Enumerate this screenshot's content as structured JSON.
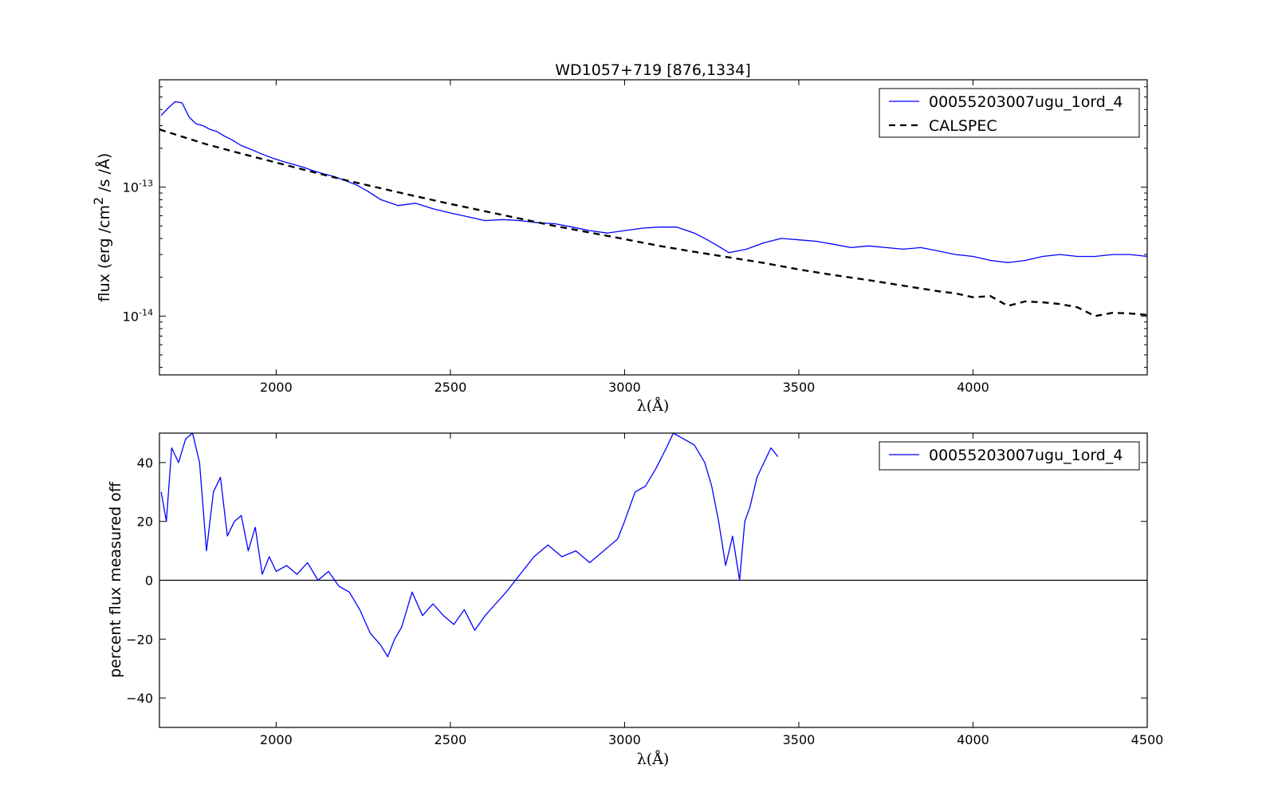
{
  "chart_data": [
    {
      "type": "line",
      "title": "WD1057+719 [876,1334]",
      "xlabel": "λ(Å)",
      "ylabel": "flux (erg /cm² /s /Å)",
      "ylabel_parts": {
        "pre": "flux (erg /cm",
        "sup": "2",
        "post": " /s /Å)"
      },
      "y_scale": "log",
      "xlim": [
        1665,
        4500
      ],
      "ylim": [
        3.5e-15,
        6.8e-13
      ],
      "x_ticks": [
        2000,
        2500,
        3000,
        3500,
        4000
      ],
      "x_tick_labels": [
        "2000",
        "2500",
        "3000",
        "3500",
        "4000"
      ],
      "y_ticks": [
        1e-13,
        1e-14
      ],
      "y_tick_labels": [
        {
          "base": "10",
          "exp": "-13"
        },
        {
          "base": "10",
          "exp": "-14"
        }
      ],
      "grid": false,
      "legend_position": "top-right",
      "series": [
        {
          "name": "00055203007ugu_1ord_4",
          "color": "#0000ff",
          "style": "solid",
          "x": [
            1670,
            1690,
            1710,
            1730,
            1750,
            1770,
            1790,
            1810,
            1830,
            1850,
            1870,
            1900,
            1930,
            1960,
            1990,
            2020,
            2050,
            2080,
            2110,
            2140,
            2170,
            2200,
            2230,
            2260,
            2300,
            2350,
            2400,
            2450,
            2500,
            2550,
            2600,
            2650,
            2700,
            2750,
            2800,
            2850,
            2900,
            2950,
            3000,
            3050,
            3100,
            3150,
            3200,
            3230,
            3260,
            3300,
            3350,
            3400,
            3450,
            3500,
            3550,
            3600,
            3650,
            3700,
            3750,
            3800,
            3850,
            3900,
            3950,
            4000,
            4050,
            4100,
            4150,
            4200,
            4250,
            4300,
            4350,
            4400,
            4450,
            4500
          ],
          "y": [
            3.6e-13,
            4.1e-13,
            4.6e-13,
            4.5e-13,
            3.5e-13,
            3.1e-13,
            3e-13,
            2.8e-13,
            2.7e-13,
            2.5e-13,
            2.35e-13,
            2.1e-13,
            1.95e-13,
            1.8e-13,
            1.68e-13,
            1.58e-13,
            1.5e-13,
            1.42e-13,
            1.33e-13,
            1.26e-13,
            1.2e-13,
            1.12e-13,
            1.04e-13,
            9.4e-14,
            8e-14,
            7.2e-14,
            7.5e-14,
            6.8e-14,
            6.3e-14,
            5.9e-14,
            5.5e-14,
            5.6e-14,
            5.5e-14,
            5.3e-14,
            5.2e-14,
            4.9e-14,
            4.6e-14,
            4.4e-14,
            4.6e-14,
            4.8e-14,
            4.9e-14,
            4.9e-14,
            4.4e-14,
            4e-14,
            3.6e-14,
            3.1e-14,
            3.3e-14,
            3.7e-14,
            4e-14,
            3.9e-14,
            3.8e-14,
            3.6e-14,
            3.4e-14,
            3.5e-14,
            3.4e-14,
            3.3e-14,
            3.4e-14,
            3.2e-14,
            3e-14,
            2.9e-14,
            2.7e-14,
            2.6e-14,
            2.7e-14,
            2.9e-14,
            3e-14,
            2.9e-14,
            2.9e-14,
            3e-14,
            3e-14,
            2.9e-14
          ]
        },
        {
          "name": "CALSPEC",
          "color": "#000000",
          "style": "dashed",
          "x": [
            1665,
            1800,
            1900,
            2000,
            2100,
            2200,
            2300,
            2400,
            2500,
            2600,
            2700,
            2800,
            2900,
            3000,
            3100,
            3200,
            3300,
            3400,
            3500,
            3600,
            3700,
            3800,
            3900,
            3950,
            4000,
            4050,
            4100,
            4150,
            4200,
            4250,
            4300,
            4350,
            4400,
            4450,
            4500
          ],
          "y": [
            2.8e-13,
            2.15e-13,
            1.82e-13,
            1.55e-13,
            1.32e-13,
            1.13e-13,
            9.8e-14,
            8.5e-14,
            7.4e-14,
            6.5e-14,
            5.7e-14,
            5e-14,
            4.45e-14,
            3.95e-14,
            3.5e-14,
            3.15e-14,
            2.85e-14,
            2.58e-14,
            2.3e-14,
            2.08e-14,
            1.9e-14,
            1.72e-14,
            1.56e-14,
            1.5e-14,
            1.4e-14,
            1.43e-14,
            1.2e-14,
            1.3e-14,
            1.28e-14,
            1.24e-14,
            1.17e-14,
            1e-14,
            1.06e-14,
            1.05e-14,
            1.02e-14
          ]
        }
      ]
    },
    {
      "type": "line",
      "title": "",
      "xlabel": "λ(Å)",
      "ylabel": "percent flux measured off",
      "y_scale": "linear",
      "xlim": [
        1665,
        4500
      ],
      "ylim": [
        -50,
        50
      ],
      "x_ticks": [
        2000,
        2500,
        3000,
        3500,
        4000,
        4500
      ],
      "x_tick_labels": [
        "2000",
        "2500",
        "3000",
        "3500",
        "4000",
        "4500"
      ],
      "y_ticks": [
        40,
        20,
        0,
        -20,
        -40
      ],
      "y_tick_labels": [
        "40",
        "20",
        "0",
        "−20",
        "−40"
      ],
      "hline": 0,
      "grid": false,
      "legend_position": "top-right",
      "series": [
        {
          "name": "00055203007ugu_1ord_4",
          "color": "#0000ff",
          "style": "solid",
          "x": [
            1670,
            1685,
            1700,
            1720,
            1740,
            1760,
            1780,
            1800,
            1820,
            1840,
            1860,
            1880,
            1900,
            1920,
            1940,
            1960,
            1980,
            2000,
            2030,
            2060,
            2090,
            2120,
            2150,
            2180,
            2210,
            2240,
            2270,
            2300,
            2320,
            2340,
            2360,
            2390,
            2420,
            2450,
            2480,
            2510,
            2540,
            2570,
            2600,
            2630,
            2660,
            2700,
            2740,
            2780,
            2820,
            2860,
            2900,
            2940,
            2980,
            3000,
            3030,
            3060,
            3090,
            3120,
            3140,
            3170,
            3200,
            3230,
            3250,
            3270,
            3290,
            3310,
            3330,
            3345,
            3360,
            3380,
            3400,
            3420,
            3440
          ],
          "y": [
            30,
            20,
            45,
            40,
            48,
            50,
            40,
            10,
            30,
            35,
            15,
            20,
            22,
            10,
            18,
            2,
            8,
            3,
            5,
            2,
            6,
            0,
            3,
            -2,
            -4,
            -10,
            -18,
            -22,
            -26,
            -20,
            -16,
            -4,
            -12,
            -8,
            -12,
            -15,
            -10,
            -17,
            -12,
            -8,
            -4,
            2,
            8,
            12,
            8,
            10,
            6,
            10,
            14,
            20,
            30,
            32,
            38,
            45,
            50,
            48,
            46,
            40,
            32,
            20,
            5,
            15,
            0,
            20,
            25,
            35,
            40,
            45,
            42
          ]
        }
      ]
    }
  ]
}
